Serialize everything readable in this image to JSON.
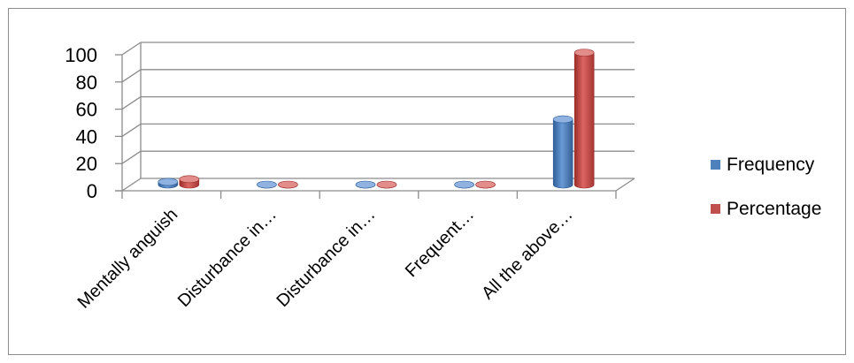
{
  "chart_data": {
    "type": "bar",
    "title": "",
    "xlabel": "",
    "ylabel": "",
    "categories": [
      "Mentally anguish",
      "Disturbance in…",
      "Disturbance in…",
      "Frequent…",
      "All the above…"
    ],
    "series": [
      {
        "name": "Frequency",
        "values": [
          2,
          0,
          0,
          0,
          48
        ],
        "color": "#4f81bd"
      },
      {
        "name": "Percentage",
        "values": [
          4,
          0,
          0,
          0,
          97
        ],
        "color": "#c0504d"
      }
    ],
    "ylim": [
      0,
      100
    ],
    "yticks": [
      "0",
      "20",
      "40",
      "60",
      "80",
      "100"
    ],
    "grid": true,
    "style": "3d-cylinder",
    "legend_position": "right"
  }
}
